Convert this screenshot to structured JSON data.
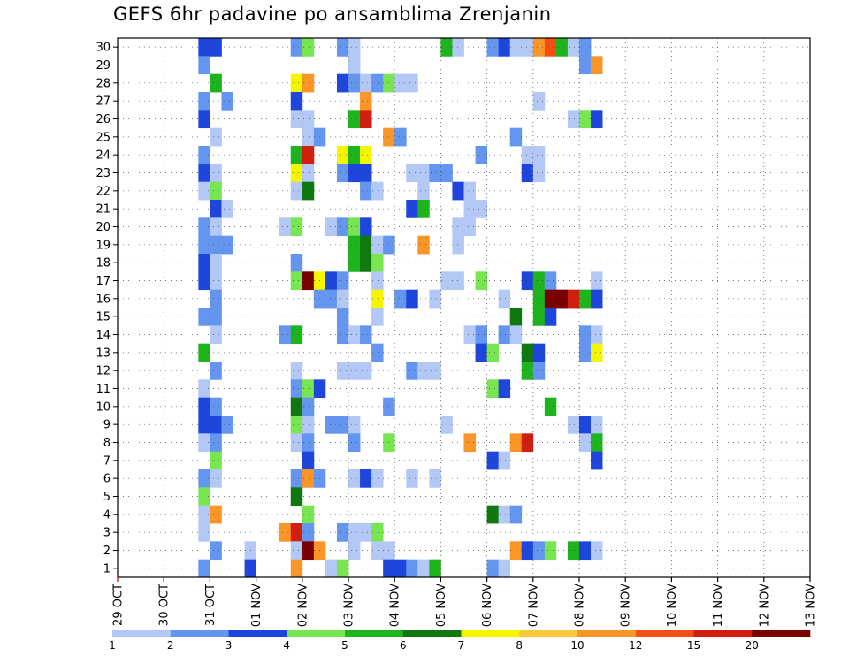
{
  "chart_data": {
    "type": "heatmap",
    "title": "GEFS 6hr padavine po ansamblima Zrenjanin",
    "xlabel": "",
    "ylabel": "",
    "x_ticks": [
      "29 OCT",
      "30 OCT",
      "31 OCT",
      "01 NOV",
      "02 NOV",
      "03 NOV",
      "04 NOV",
      "05 NOV",
      "06 NOV",
      "07 NOV",
      "08 NOV",
      "09 NOV",
      "10 NOV",
      "11 NOV",
      "12 NOV",
      "13 NOV"
    ],
    "y_ticks": [
      1,
      2,
      3,
      4,
      5,
      6,
      7,
      8,
      9,
      10,
      11,
      12,
      13,
      14,
      15,
      16,
      17,
      18,
      19,
      20,
      21,
      22,
      23,
      24,
      25,
      26,
      27,
      28,
      29,
      30
    ],
    "ylim": [
      0,
      30
    ],
    "steps_per_day": 4,
    "total_steps": 60,
    "grid": true,
    "legend_position": "bottom",
    "legend_labels": [
      "1",
      "2",
      "3",
      "4",
      "5",
      "6",
      "7",
      "8",
      "10",
      "12",
      "15",
      "20"
    ],
    "color_scale": [
      "#b4c8f5",
      "#6496f0",
      "#1e46dc",
      "#78e650",
      "#1eb41e",
      "#0f780f",
      "#f5f500",
      "#fac83c",
      "#fa9628",
      "#f55014",
      "#d21e0f",
      "#780000"
    ],
    "cells": [
      {
        "m": 30,
        "s": 7,
        "c": 3
      },
      {
        "m": 30,
        "s": 8,
        "c": 3
      },
      {
        "m": 30,
        "s": 15,
        "c": 2
      },
      {
        "m": 30,
        "s": 16,
        "c": 4
      },
      {
        "m": 30,
        "s": 19,
        "c": 2
      },
      {
        "m": 30,
        "s": 20,
        "c": 1
      },
      {
        "m": 30,
        "s": 28,
        "c": 5
      },
      {
        "m": 30,
        "s": 29,
        "c": 1
      },
      {
        "m": 30,
        "s": 32,
        "c": 2
      },
      {
        "m": 30,
        "s": 33,
        "c": 3
      },
      {
        "m": 30,
        "s": 34,
        "c": 1
      },
      {
        "m": 30,
        "s": 35,
        "c": 1
      },
      {
        "m": 30,
        "s": 36,
        "c": 9
      },
      {
        "m": 30,
        "s": 37,
        "c": 10
      },
      {
        "m": 30,
        "s": 38,
        "c": 5
      },
      {
        "m": 30,
        "s": 39,
        "c": 1
      },
      {
        "m": 30,
        "s": 40,
        "c": 2
      },
      {
        "m": 29,
        "s": 7,
        "c": 2
      },
      {
        "m": 29,
        "s": 20,
        "c": 1
      },
      {
        "m": 29,
        "s": 40,
        "c": 2
      },
      {
        "m": 29,
        "s": 41,
        "c": 9
      },
      {
        "m": 28,
        "s": 8,
        "c": 5
      },
      {
        "m": 28,
        "s": 15,
        "c": 7
      },
      {
        "m": 28,
        "s": 16,
        "c": 9
      },
      {
        "m": 28,
        "s": 19,
        "c": 3
      },
      {
        "m": 28,
        "s": 20,
        "c": 2
      },
      {
        "m": 28,
        "s": 21,
        "c": 1
      },
      {
        "m": 28,
        "s": 22,
        "c": 2
      },
      {
        "m": 28,
        "s": 23,
        "c": 4
      },
      {
        "m": 28,
        "s": 24,
        "c": 1
      },
      {
        "m": 28,
        "s": 25,
        "c": 1
      },
      {
        "m": 27,
        "s": 7,
        "c": 2
      },
      {
        "m": 27,
        "s": 9,
        "c": 2
      },
      {
        "m": 27,
        "s": 15,
        "c": 3
      },
      {
        "m": 27,
        "s": 21,
        "c": 9
      },
      {
        "m": 27,
        "s": 36,
        "c": 1
      },
      {
        "m": 26,
        "s": 7,
        "c": 3
      },
      {
        "m": 26,
        "s": 15,
        "c": 1
      },
      {
        "m": 26,
        "s": 16,
        "c": 1
      },
      {
        "m": 26,
        "s": 20,
        "c": 5
      },
      {
        "m": 26,
        "s": 21,
        "c": 11
      },
      {
        "m": 26,
        "s": 39,
        "c": 1
      },
      {
        "m": 26,
        "s": 40,
        "c": 4
      },
      {
        "m": 26,
        "s": 41,
        "c": 3
      },
      {
        "m": 25,
        "s": 8,
        "c": 1
      },
      {
        "m": 25,
        "s": 16,
        "c": 1
      },
      {
        "m": 25,
        "s": 17,
        "c": 2
      },
      {
        "m": 25,
        "s": 23,
        "c": 9
      },
      {
        "m": 25,
        "s": 24,
        "c": 2
      },
      {
        "m": 25,
        "s": 34,
        "c": 2
      },
      {
        "m": 24,
        "s": 7,
        "c": 2
      },
      {
        "m": 24,
        "s": 15,
        "c": 5
      },
      {
        "m": 24,
        "s": 16,
        "c": 11
      },
      {
        "m": 24,
        "s": 19,
        "c": 7
      },
      {
        "m": 24,
        "s": 20,
        "c": 5
      },
      {
        "m": 24,
        "s": 21,
        "c": 7
      },
      {
        "m": 24,
        "s": 31,
        "c": 2
      },
      {
        "m": 24,
        "s": 35,
        "c": 1
      },
      {
        "m": 24,
        "s": 36,
        "c": 1
      },
      {
        "m": 23,
        "s": 7,
        "c": 3
      },
      {
        "m": 23,
        "s": 8,
        "c": 1
      },
      {
        "m": 23,
        "s": 15,
        "c": 7
      },
      {
        "m": 23,
        "s": 16,
        "c": 1
      },
      {
        "m": 23,
        "s": 19,
        "c": 2
      },
      {
        "m": 23,
        "s": 20,
        "c": 3
      },
      {
        "m": 23,
        "s": 21,
        "c": 3
      },
      {
        "m": 23,
        "s": 25,
        "c": 1
      },
      {
        "m": 23,
        "s": 26,
        "c": 1
      },
      {
        "m": 23,
        "s": 27,
        "c": 2
      },
      {
        "m": 23,
        "s": 28,
        "c": 2
      },
      {
        "m": 23,
        "s": 35,
        "c": 3
      },
      {
        "m": 23,
        "s": 36,
        "c": 1
      },
      {
        "m": 22,
        "s": 7,
        "c": 1
      },
      {
        "m": 22,
        "s": 8,
        "c": 4
      },
      {
        "m": 22,
        "s": 15,
        "c": 1
      },
      {
        "m": 22,
        "s": 16,
        "c": 6
      },
      {
        "m": 22,
        "s": 21,
        "c": 2
      },
      {
        "m": 22,
        "s": 22,
        "c": 1
      },
      {
        "m": 22,
        "s": 26,
        "c": 1
      },
      {
        "m": 22,
        "s": 29,
        "c": 3
      },
      {
        "m": 22,
        "s": 30,
        "c": 1
      },
      {
        "m": 21,
        "s": 8,
        "c": 3
      },
      {
        "m": 21,
        "s": 9,
        "c": 1
      },
      {
        "m": 21,
        "s": 25,
        "c": 3
      },
      {
        "m": 21,
        "s": 26,
        "c": 5
      },
      {
        "m": 21,
        "s": 30,
        "c": 1
      },
      {
        "m": 21,
        "s": 31,
        "c": 1
      },
      {
        "m": 20,
        "s": 7,
        "c": 2
      },
      {
        "m": 20,
        "s": 8,
        "c": 1
      },
      {
        "m": 20,
        "s": 14,
        "c": 1
      },
      {
        "m": 20,
        "s": 15,
        "c": 4
      },
      {
        "m": 20,
        "s": 18,
        "c": 1
      },
      {
        "m": 20,
        "s": 19,
        "c": 2
      },
      {
        "m": 20,
        "s": 20,
        "c": 4
      },
      {
        "m": 20,
        "s": 21,
        "c": 3
      },
      {
        "m": 20,
        "s": 29,
        "c": 1
      },
      {
        "m": 20,
        "s": 30,
        "c": 1
      },
      {
        "m": 19,
        "s": 7,
        "c": 2
      },
      {
        "m": 19,
        "s": 8,
        "c": 2
      },
      {
        "m": 19,
        "s": 9,
        "c": 2
      },
      {
        "m": 19,
        "s": 20,
        "c": 5
      },
      {
        "m": 19,
        "s": 21,
        "c": 6
      },
      {
        "m": 19,
        "s": 22,
        "c": 1
      },
      {
        "m": 19,
        "s": 23,
        "c": 2
      },
      {
        "m": 19,
        "s": 26,
        "c": 9
      },
      {
        "m": 19,
        "s": 29,
        "c": 1
      },
      {
        "m": 18,
        "s": 7,
        "c": 3
      },
      {
        "m": 18,
        "s": 8,
        "c": 1
      },
      {
        "m": 18,
        "s": 15,
        "c": 2
      },
      {
        "m": 18,
        "s": 20,
        "c": 5
      },
      {
        "m": 18,
        "s": 21,
        "c": 6
      },
      {
        "m": 18,
        "s": 22,
        "c": 4
      },
      {
        "m": 17,
        "s": 7,
        "c": 3
      },
      {
        "m": 17,
        "s": 8,
        "c": 1
      },
      {
        "m": 17,
        "s": 15,
        "c": 4
      },
      {
        "m": 17,
        "s": 16,
        "c": 12
      },
      {
        "m": 17,
        "s": 17,
        "c": 7
      },
      {
        "m": 17,
        "s": 18,
        "c": 3
      },
      {
        "m": 17,
        "s": 19,
        "c": 2
      },
      {
        "m": 17,
        "s": 22,
        "c": 1
      },
      {
        "m": 17,
        "s": 28,
        "c": 1
      },
      {
        "m": 17,
        "s": 29,
        "c": 1
      },
      {
        "m": 17,
        "s": 31,
        "c": 4
      },
      {
        "m": 17,
        "s": 35,
        "c": 3
      },
      {
        "m": 17,
        "s": 36,
        "c": 5
      },
      {
        "m": 17,
        "s": 37,
        "c": 2
      },
      {
        "m": 17,
        "s": 41,
        "c": 1
      },
      {
        "m": 16,
        "s": 8,
        "c": 2
      },
      {
        "m": 16,
        "s": 17,
        "c": 2
      },
      {
        "m": 16,
        "s": 18,
        "c": 2
      },
      {
        "m": 16,
        "s": 19,
        "c": 1
      },
      {
        "m": 16,
        "s": 22,
        "c": 7
      },
      {
        "m": 16,
        "s": 24,
        "c": 2
      },
      {
        "m": 16,
        "s": 25,
        "c": 3
      },
      {
        "m": 16,
        "s": 27,
        "c": 1
      },
      {
        "m": 16,
        "s": 33,
        "c": 1
      },
      {
        "m": 16,
        "s": 36,
        "c": 5
      },
      {
        "m": 16,
        "s": 37,
        "c": 12
      },
      {
        "m": 16,
        "s": 38,
        "c": 12
      },
      {
        "m": 16,
        "s": 39,
        "c": 11
      },
      {
        "m": 16,
        "s": 40,
        "c": 5
      },
      {
        "m": 16,
        "s": 41,
        "c": 3
      },
      {
        "m": 15,
        "s": 7,
        "c": 2
      },
      {
        "m": 15,
        "s": 8,
        "c": 2
      },
      {
        "m": 15,
        "s": 19,
        "c": 2
      },
      {
        "m": 15,
        "s": 22,
        "c": 1
      },
      {
        "m": 15,
        "s": 34,
        "c": 6
      },
      {
        "m": 15,
        "s": 36,
        "c": 5
      },
      {
        "m": 15,
        "s": 37,
        "c": 3
      },
      {
        "m": 14,
        "s": 8,
        "c": 1
      },
      {
        "m": 14,
        "s": 14,
        "c": 2
      },
      {
        "m": 14,
        "s": 15,
        "c": 5
      },
      {
        "m": 14,
        "s": 19,
        "c": 2
      },
      {
        "m": 14,
        "s": 20,
        "c": 1
      },
      {
        "m": 14,
        "s": 21,
        "c": 2
      },
      {
        "m": 14,
        "s": 30,
        "c": 1
      },
      {
        "m": 14,
        "s": 31,
        "c": 2
      },
      {
        "m": 14,
        "s": 33,
        "c": 2
      },
      {
        "m": 14,
        "s": 34,
        "c": 1
      },
      {
        "m": 14,
        "s": 40,
        "c": 2
      },
      {
        "m": 14,
        "s": 41,
        "c": 1
      },
      {
        "m": 13,
        "s": 7,
        "c": 5
      },
      {
        "m": 13,
        "s": 22,
        "c": 2
      },
      {
        "m": 13,
        "s": 31,
        "c": 3
      },
      {
        "m": 13,
        "s": 32,
        "c": 4
      },
      {
        "m": 13,
        "s": 35,
        "c": 6
      },
      {
        "m": 13,
        "s": 36,
        "c": 3
      },
      {
        "m": 13,
        "s": 40,
        "c": 2
      },
      {
        "m": 13,
        "s": 41,
        "c": 7
      },
      {
        "m": 12,
        "s": 8,
        "c": 2
      },
      {
        "m": 12,
        "s": 15,
        "c": 1
      },
      {
        "m": 12,
        "s": 19,
        "c": 1
      },
      {
        "m": 12,
        "s": 20,
        "c": 1
      },
      {
        "m": 12,
        "s": 21,
        "c": 1
      },
      {
        "m": 12,
        "s": 25,
        "c": 2
      },
      {
        "m": 12,
        "s": 26,
        "c": 1
      },
      {
        "m": 12,
        "s": 27,
        "c": 1
      },
      {
        "m": 12,
        "s": 35,
        "c": 5
      },
      {
        "m": 12,
        "s": 36,
        "c": 2
      },
      {
        "m": 11,
        "s": 7,
        "c": 1
      },
      {
        "m": 11,
        "s": 15,
        "c": 2
      },
      {
        "m": 11,
        "s": 16,
        "c": 4
      },
      {
        "m": 11,
        "s": 17,
        "c": 3
      },
      {
        "m": 11,
        "s": 32,
        "c": 4
      },
      {
        "m": 11,
        "s": 33,
        "c": 3
      },
      {
        "m": 10,
        "s": 7,
        "c": 3
      },
      {
        "m": 10,
        "s": 8,
        "c": 2
      },
      {
        "m": 10,
        "s": 15,
        "c": 6
      },
      {
        "m": 10,
        "s": 16,
        "c": 2
      },
      {
        "m": 10,
        "s": 23,
        "c": 2
      },
      {
        "m": 10,
        "s": 37,
        "c": 5
      },
      {
        "m": 9,
        "s": 7,
        "c": 3
      },
      {
        "m": 9,
        "s": 8,
        "c": 3
      },
      {
        "m": 9,
        "s": 9,
        "c": 2
      },
      {
        "m": 9,
        "s": 15,
        "c": 4
      },
      {
        "m": 9,
        "s": 16,
        "c": 1
      },
      {
        "m": 9,
        "s": 18,
        "c": 2
      },
      {
        "m": 9,
        "s": 19,
        "c": 2
      },
      {
        "m": 9,
        "s": 20,
        "c": 1
      },
      {
        "m": 9,
        "s": 28,
        "c": 1
      },
      {
        "m": 9,
        "s": 39,
        "c": 1
      },
      {
        "m": 9,
        "s": 40,
        "c": 3
      },
      {
        "m": 9,
        "s": 41,
        "c": 1
      },
      {
        "m": 8,
        "s": 7,
        "c": 1
      },
      {
        "m": 8,
        "s": 8,
        "c": 2
      },
      {
        "m": 8,
        "s": 15,
        "c": 1
      },
      {
        "m": 8,
        "s": 16,
        "c": 2
      },
      {
        "m": 8,
        "s": 20,
        "c": 2
      },
      {
        "m": 8,
        "s": 23,
        "c": 4
      },
      {
        "m": 8,
        "s": 30,
        "c": 9
      },
      {
        "m": 8,
        "s": 34,
        "c": 9
      },
      {
        "m": 8,
        "s": 35,
        "c": 11
      },
      {
        "m": 8,
        "s": 40,
        "c": 1
      },
      {
        "m": 8,
        "s": 41,
        "c": 5
      },
      {
        "m": 7,
        "s": 8,
        "c": 4
      },
      {
        "m": 7,
        "s": 16,
        "c": 3
      },
      {
        "m": 7,
        "s": 32,
        "c": 3
      },
      {
        "m": 7,
        "s": 33,
        "c": 1
      },
      {
        "m": 7,
        "s": 41,
        "c": 3
      },
      {
        "m": 6,
        "s": 7,
        "c": 2
      },
      {
        "m": 6,
        "s": 8,
        "c": 1
      },
      {
        "m": 6,
        "s": 15,
        "c": 2
      },
      {
        "m": 6,
        "s": 16,
        "c": 9
      },
      {
        "m": 6,
        "s": 17,
        "c": 2
      },
      {
        "m": 6,
        "s": 20,
        "c": 1
      },
      {
        "m": 6,
        "s": 21,
        "c": 3
      },
      {
        "m": 6,
        "s": 22,
        "c": 1
      },
      {
        "m": 6,
        "s": 25,
        "c": 1
      },
      {
        "m": 6,
        "s": 27,
        "c": 1
      },
      {
        "m": 5,
        "s": 7,
        "c": 4
      },
      {
        "m": 5,
        "s": 15,
        "c": 6
      },
      {
        "m": 4,
        "s": 7,
        "c": 1
      },
      {
        "m": 4,
        "s": 8,
        "c": 9
      },
      {
        "m": 4,
        "s": 16,
        "c": 4
      },
      {
        "m": 4,
        "s": 32,
        "c": 6
      },
      {
        "m": 4,
        "s": 33,
        "c": 1
      },
      {
        "m": 4,
        "s": 34,
        "c": 2
      },
      {
        "m": 3,
        "s": 7,
        "c": 1
      },
      {
        "m": 3,
        "s": 14,
        "c": 9
      },
      {
        "m": 3,
        "s": 15,
        "c": 11
      },
      {
        "m": 3,
        "s": 16,
        "c": 2
      },
      {
        "m": 3,
        "s": 19,
        "c": 2
      },
      {
        "m": 3,
        "s": 20,
        "c": 1
      },
      {
        "m": 3,
        "s": 21,
        "c": 1
      },
      {
        "m": 3,
        "s": 22,
        "c": 4
      },
      {
        "m": 2,
        "s": 8,
        "c": 2
      },
      {
        "m": 2,
        "s": 11,
        "c": 1
      },
      {
        "m": 2,
        "s": 15,
        "c": 1
      },
      {
        "m": 2,
        "s": 16,
        "c": 12
      },
      {
        "m": 2,
        "s": 17,
        "c": 9
      },
      {
        "m": 2,
        "s": 20,
        "c": 1
      },
      {
        "m": 2,
        "s": 22,
        "c": 1
      },
      {
        "m": 2,
        "s": 23,
        "c": 1
      },
      {
        "m": 2,
        "s": 34,
        "c": 9
      },
      {
        "m": 2,
        "s": 35,
        "c": 3
      },
      {
        "m": 2,
        "s": 36,
        "c": 2
      },
      {
        "m": 2,
        "s": 37,
        "c": 4
      },
      {
        "m": 2,
        "s": 39,
        "c": 5
      },
      {
        "m": 2,
        "s": 40,
        "c": 3
      },
      {
        "m": 2,
        "s": 41,
        "c": 1
      },
      {
        "m": 1,
        "s": 7,
        "c": 2
      },
      {
        "m": 1,
        "s": 11,
        "c": 3
      },
      {
        "m": 1,
        "s": 15,
        "c": 9
      },
      {
        "m": 1,
        "s": 18,
        "c": 1
      },
      {
        "m": 1,
        "s": 19,
        "c": 4
      },
      {
        "m": 1,
        "s": 23,
        "c": 3
      },
      {
        "m": 1,
        "s": 24,
        "c": 3
      },
      {
        "m": 1,
        "s": 25,
        "c": 2
      },
      {
        "m": 1,
        "s": 26,
        "c": 1
      },
      {
        "m": 1,
        "s": 27,
        "c": 5
      },
      {
        "m": 1,
        "s": 32,
        "c": 2
      },
      {
        "m": 1,
        "s": 33,
        "c": 1
      }
    ]
  }
}
